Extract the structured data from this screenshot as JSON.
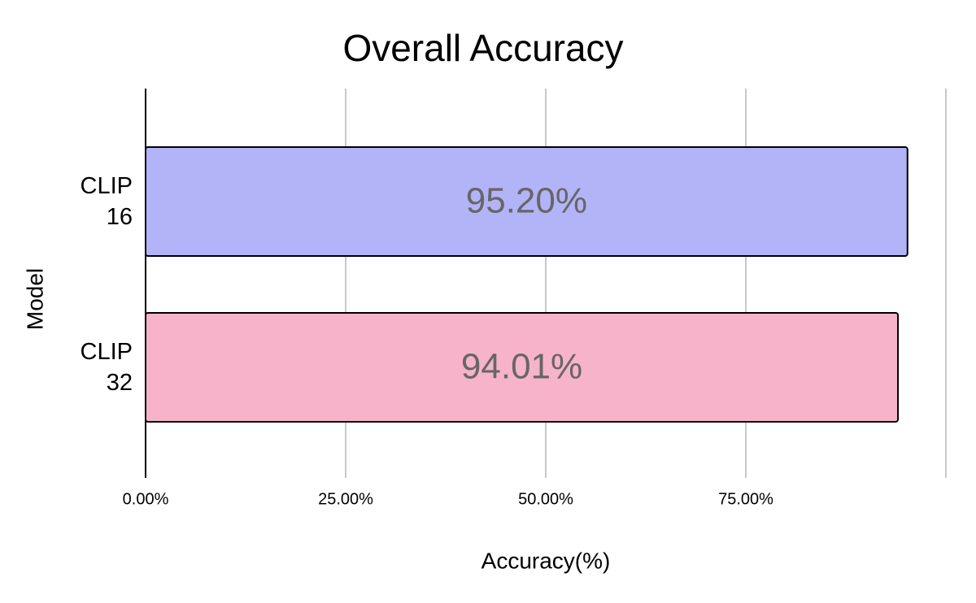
{
  "chart_data": {
    "type": "bar",
    "orientation": "horizontal",
    "title": "Overall Accuracy",
    "x_label": "Accuracy(%)",
    "y_label": "Model",
    "categories": [
      "CLIP 16",
      "CLIP 32"
    ],
    "values": [
      95.2,
      94.01
    ],
    "value_labels": [
      "95.20%",
      "94.01%"
    ],
    "colors": [
      "#b3b3f8",
      "#f7b3c9"
    ],
    "xlim": [
      0,
      100
    ],
    "xticks": [
      {
        "value": 0,
        "label": "0.00%"
      },
      {
        "value": 25,
        "label": "25.00%"
      },
      {
        "value": 50,
        "label": "50.00%"
      },
      {
        "value": 75,
        "label": "75.00%"
      }
    ],
    "grid": true
  }
}
